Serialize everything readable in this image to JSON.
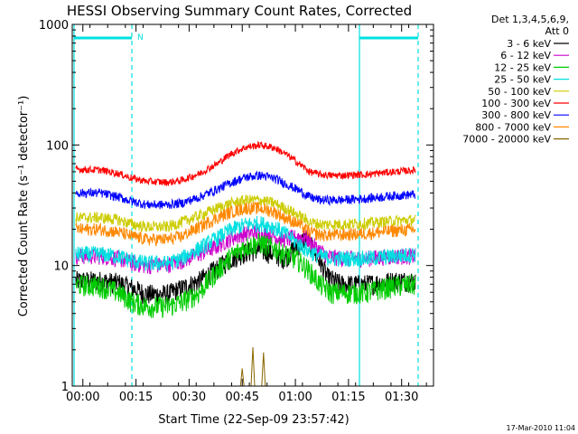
{
  "chart_data": {
    "type": "line",
    "title": "HESSI Observing Summary Count Rates, Corrected",
    "xlabel": "Start Time (22-Sep-09 23:57:42)",
    "ylabel": "Corrected Count Rate (s⁻¹ detector⁻¹)",
    "yscale": "log",
    "ylim": [
      1,
      1000
    ],
    "xlim_minutes": [
      -3,
      99
    ],
    "x_ticks": [
      "00:00",
      "00:15",
      "00:30",
      "00:45",
      "01:00",
      "01:15",
      "01:30"
    ],
    "y_ticks": [
      "1",
      "10",
      "100",
      "1000"
    ],
    "legend_header": [
      "Det 1,3,4,5,6,9,",
      "Att 0"
    ],
    "legend_placement": "right",
    "series": [
      {
        "name": "3 - 6 keV",
        "color": "#000000",
        "points": [
          [
            -2,
            7.5
          ],
          [
            5,
            7.5
          ],
          [
            10,
            7.2
          ],
          [
            14,
            6.5
          ],
          [
            18,
            5.8
          ],
          [
            24,
            5.8
          ],
          [
            28,
            6.5
          ],
          [
            33,
            7.5
          ],
          [
            38,
            9.5
          ],
          [
            42,
            11.5
          ],
          [
            46,
            13
          ],
          [
            50,
            13.5
          ],
          [
            54,
            12.5
          ],
          [
            57,
            11.5
          ],
          [
            61,
            15
          ],
          [
            63,
            17
          ],
          [
            66,
            12
          ],
          [
            69,
            8
          ],
          [
            73,
            7
          ],
          [
            80,
            7
          ],
          [
            88,
            7.5
          ],
          [
            94,
            7.5
          ]
        ]
      },
      {
        "name": "6 - 12 keV",
        "color": "#cc00cc",
        "points": [
          [
            -2,
            12
          ],
          [
            5,
            12
          ],
          [
            10,
            11.5
          ],
          [
            14,
            10.5
          ],
          [
            18,
            10
          ],
          [
            24,
            10.2
          ],
          [
            28,
            11
          ],
          [
            33,
            12.5
          ],
          [
            38,
            14.5
          ],
          [
            42,
            17
          ],
          [
            46,
            18.5
          ],
          [
            50,
            18.8
          ],
          [
            54,
            17.5
          ],
          [
            57,
            16.5
          ],
          [
            61,
            17.5
          ],
          [
            63,
            17
          ],
          [
            66,
            14
          ],
          [
            69,
            12
          ],
          [
            73,
            11.5
          ],
          [
            80,
            11.5
          ],
          [
            88,
            12
          ],
          [
            94,
            12
          ]
        ]
      },
      {
        "name": "12 - 25 keV",
        "color": "#00cc00",
        "points": [
          [
            -2,
            7
          ],
          [
            5,
            6.8
          ],
          [
            10,
            6
          ],
          [
            14,
            5
          ],
          [
            18,
            4.6
          ],
          [
            24,
            4.6
          ],
          [
            28,
            5
          ],
          [
            33,
            6
          ],
          [
            38,
            9
          ],
          [
            42,
            12
          ],
          [
            46,
            14.5
          ],
          [
            50,
            15.5
          ],
          [
            54,
            14
          ],
          [
            57,
            12.5
          ],
          [
            61,
            11
          ],
          [
            64,
            9
          ],
          [
            67,
            7
          ],
          [
            70,
            6
          ],
          [
            73,
            6
          ],
          [
            80,
            6
          ],
          [
            88,
            6.8
          ],
          [
            94,
            7
          ]
        ]
      },
      {
        "name": "25 - 50 keV",
        "color": "#00e0e0",
        "points": [
          [
            -2,
            12.5
          ],
          [
            5,
            12.5
          ],
          [
            10,
            12
          ],
          [
            14,
            11
          ],
          [
            18,
            10.5
          ],
          [
            24,
            10.5
          ],
          [
            28,
            11.5
          ],
          [
            33,
            14
          ],
          [
            38,
            17
          ],
          [
            42,
            20
          ],
          [
            46,
            22
          ],
          [
            50,
            22.5
          ],
          [
            54,
            21
          ],
          [
            57,
            18.5
          ],
          [
            61,
            15
          ],
          [
            64,
            13
          ],
          [
            67,
            12
          ],
          [
            70,
            11.5
          ],
          [
            73,
            11.5
          ],
          [
            80,
            11.5
          ],
          [
            88,
            12
          ],
          [
            94,
            12.5
          ]
        ]
      },
      {
        "name": "50 - 100 keV",
        "color": "#cccc00",
        "points": [
          [
            -2,
            25
          ],
          [
            5,
            25
          ],
          [
            10,
            24
          ],
          [
            14,
            22
          ],
          [
            18,
            21
          ],
          [
            24,
            21
          ],
          [
            28,
            23
          ],
          [
            33,
            26
          ],
          [
            38,
            30
          ],
          [
            42,
            33
          ],
          [
            46,
            35
          ],
          [
            50,
            35
          ],
          [
            54,
            33
          ],
          [
            57,
            30
          ],
          [
            61,
            26
          ],
          [
            64,
            23
          ],
          [
            67,
            22
          ],
          [
            70,
            22
          ],
          [
            73,
            22
          ],
          [
            80,
            22.5
          ],
          [
            88,
            23.5
          ],
          [
            94,
            24
          ]
        ]
      },
      {
        "name": "100 - 300 keV",
        "color": "#ff0000",
        "points": [
          [
            -2,
            63
          ],
          [
            5,
            62
          ],
          [
            10,
            58
          ],
          [
            14,
            53
          ],
          [
            18,
            50
          ],
          [
            24,
            49
          ],
          [
            28,
            51
          ],
          [
            33,
            58
          ],
          [
            38,
            70
          ],
          [
            42,
            85
          ],
          [
            46,
            96
          ],
          [
            50,
            100
          ],
          [
            54,
            95
          ],
          [
            57,
            85
          ],
          [
            61,
            70
          ],
          [
            64,
            60
          ],
          [
            67,
            57
          ],
          [
            70,
            56
          ],
          [
            73,
            56
          ],
          [
            80,
            57
          ],
          [
            88,
            60
          ],
          [
            94,
            62
          ]
        ]
      },
      {
        "name": "300 - 800 keV",
        "color": "#0000ff",
        "points": [
          [
            -2,
            40
          ],
          [
            5,
            40
          ],
          [
            10,
            37
          ],
          [
            14,
            34
          ],
          [
            18,
            32
          ],
          [
            24,
            32
          ],
          [
            28,
            33
          ],
          [
            33,
            37
          ],
          [
            38,
            43
          ],
          [
            42,
            49
          ],
          [
            46,
            54
          ],
          [
            50,
            56
          ],
          [
            54,
            53
          ],
          [
            57,
            48
          ],
          [
            61,
            42
          ],
          [
            64,
            37
          ],
          [
            67,
            35
          ],
          [
            70,
            35
          ],
          [
            73,
            35
          ],
          [
            80,
            36
          ],
          [
            88,
            38
          ],
          [
            94,
            39
          ]
        ]
      },
      {
        "name": "800 - 7000 keV",
        "color": "#ff8800",
        "points": [
          [
            -2,
            20
          ],
          [
            5,
            20
          ],
          [
            10,
            19
          ],
          [
            14,
            17.5
          ],
          [
            18,
            16.5
          ],
          [
            24,
            16.5
          ],
          [
            28,
            17.5
          ],
          [
            33,
            21
          ],
          [
            38,
            25
          ],
          [
            42,
            28
          ],
          [
            46,
            30
          ],
          [
            50,
            30
          ],
          [
            54,
            28
          ],
          [
            57,
            25
          ],
          [
            61,
            22
          ],
          [
            64,
            19
          ],
          [
            67,
            18
          ],
          [
            70,
            18
          ],
          [
            73,
            18
          ],
          [
            80,
            18.5
          ],
          [
            88,
            19.5
          ],
          [
            94,
            20
          ]
        ]
      },
      {
        "name": "7000 - 20000 keV",
        "color": "#886600",
        "points": [
          [
            44.5,
            1
          ],
          [
            45,
            1.4
          ],
          [
            45.5,
            1
          ],
          [
            47.5,
            1
          ],
          [
            48,
            2.1
          ],
          [
            48.5,
            1
          ],
          [
            50.5,
            1
          ],
          [
            51,
            1.9
          ],
          [
            51.5,
            1
          ]
        ]
      }
    ],
    "annotations": {
      "flag_letter": "N",
      "timestamp": "17-Mar-2010 11:04"
    },
    "colors": {
      "night_marker": "#00e0e0",
      "axis": "#000000",
      "background": "#ffffff"
    }
  }
}
